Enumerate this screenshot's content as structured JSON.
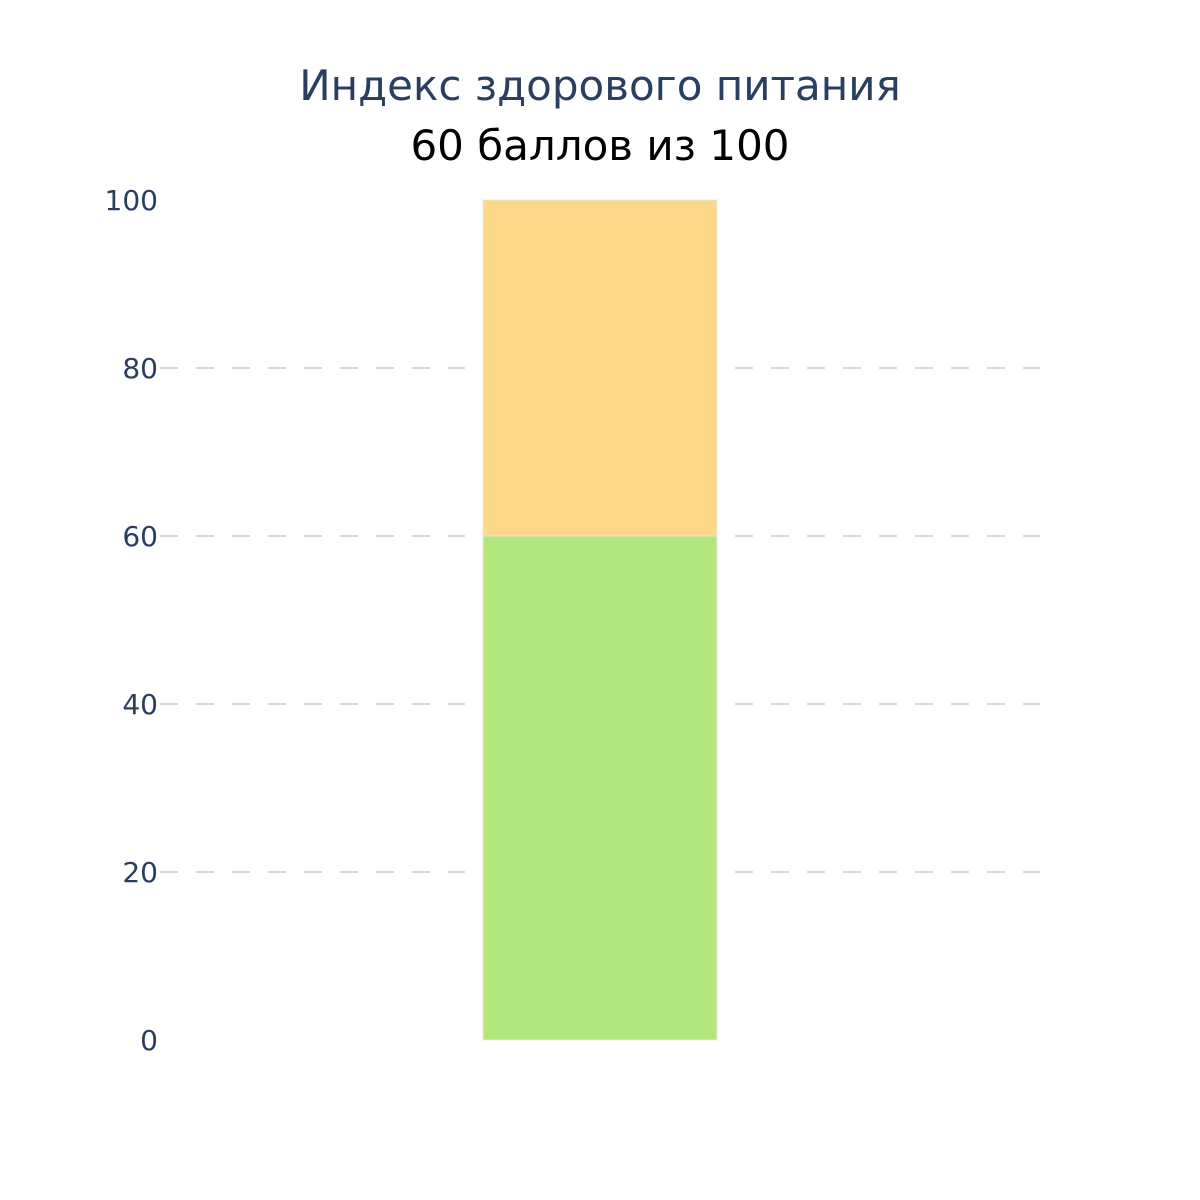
{
  "chart_data": {
    "type": "bar",
    "orientation": "vertical",
    "stacked": true,
    "title": "Индекс здорового питания",
    "subtitle": "60 баллов из 100",
    "xlabel": "",
    "ylabel": "",
    "ylim": [
      0,
      100
    ],
    "y_ticks": [
      0,
      20,
      40,
      60,
      80,
      100
    ],
    "y_tick_labels": [
      "0",
      "20",
      "40",
      "60",
      "80",
      "100"
    ],
    "grid": "horizontal dashed",
    "segments": [
      {
        "value": 60,
        "color": "#b3e67d"
      },
      {
        "value": 40,
        "color": "#fdd888"
      }
    ],
    "score": 60,
    "max": 100
  }
}
